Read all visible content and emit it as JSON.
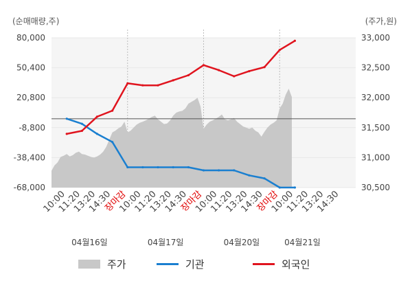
{
  "chart_data": {
    "type": "line",
    "left_axis": {
      "unit_label": "(순매매량,주)",
      "ticks": [
        80000,
        50400,
        20800,
        -8800,
        -38400,
        -68000
      ],
      "tick_labels": [
        "80,000",
        "50,400",
        "20,800",
        "-8,800",
        "-38,400",
        "-68,000"
      ],
      "ylim": [
        -68000,
        80000
      ],
      "zero_line": 0
    },
    "right_axis": {
      "unit_label": "(주가,원)",
      "ticks": [
        33000,
        32500,
        32000,
        31500,
        31000,
        30500
      ],
      "tick_labels": [
        "33,000",
        "32,500",
        "32,000",
        "31,500",
        "31,000",
        "30,500"
      ],
      "ylim": [
        30500,
        33000
      ]
    },
    "x_slots": 20,
    "x_tick_labels": [
      "10:00",
      "11:20",
      "13:20",
      "14:30",
      "장마감",
      "10:00",
      "11:20",
      "13:20",
      "14:30",
      "장마감",
      "10:00",
      "11:20",
      "13:20",
      "14:30",
      "장마감",
      "10:00",
      "11:20",
      "13:20",
      "14:30"
    ],
    "close_label": "장마감",
    "day_separators": [
      5,
      10,
      15
    ],
    "dates": [
      {
        "label": "04월16일",
        "center": 2.5
      },
      {
        "label": "04월17일",
        "center": 7.5
      },
      {
        "label": "04월20일",
        "center": 12.5
      },
      {
        "label": "04월21일",
        "center": 16.5
      }
    ],
    "series": [
      {
        "name": "기관",
        "color": "#1a7fd0",
        "axis": "left",
        "points": [
          [
            1,
            0
          ],
          [
            2,
            -5000
          ],
          [
            3,
            -15000
          ],
          [
            4,
            -23000
          ],
          [
            5,
            -48000
          ],
          [
            6,
            -48000
          ],
          [
            7,
            -48000
          ],
          [
            8,
            -48000
          ],
          [
            9,
            -48000
          ],
          [
            10,
            -51000
          ],
          [
            11,
            -51000
          ],
          [
            12,
            -51000
          ],
          [
            13,
            -56000
          ],
          [
            14,
            -59000
          ],
          [
            15,
            -68000
          ],
          [
            16,
            -68000
          ]
        ]
      },
      {
        "name": "외국인",
        "color": "#e0141e",
        "axis": "left",
        "points": [
          [
            1,
            -15000
          ],
          [
            2,
            -12000
          ],
          [
            3,
            2000
          ],
          [
            4,
            8000
          ],
          [
            5,
            35000
          ],
          [
            6,
            33000
          ],
          [
            7,
            33000
          ],
          [
            8,
            38000
          ],
          [
            9,
            43000
          ],
          [
            10,
            53000
          ],
          [
            11,
            48000
          ],
          [
            12,
            42000
          ],
          [
            13,
            47000
          ],
          [
            14,
            51000
          ],
          [
            15,
            68000
          ],
          [
            16,
            77000
          ]
        ]
      },
      {
        "name": "주가",
        "color": "#c8c8c8",
        "axis": "right",
        "type": "area",
        "points": [
          [
            0,
            30780
          ],
          [
            0.2,
            30870
          ],
          [
            0.4,
            30920
          ],
          [
            0.6,
            31010
          ],
          [
            0.8,
            31030
          ],
          [
            1.0,
            31060
          ],
          [
            1.2,
            31020
          ],
          [
            1.4,
            31040
          ],
          [
            1.6,
            31080
          ],
          [
            1.8,
            31100
          ],
          [
            2.0,
            31060
          ],
          [
            2.2,
            31050
          ],
          [
            2.4,
            31030
          ],
          [
            2.6,
            31010
          ],
          [
            2.8,
            31000
          ],
          [
            3.0,
            31020
          ],
          [
            3.2,
            31050
          ],
          [
            3.4,
            31100
          ],
          [
            3.6,
            31180
          ],
          [
            3.8,
            31300
          ],
          [
            4.0,
            31420
          ],
          [
            4.2,
            31450
          ],
          [
            4.4,
            31490
          ],
          [
            4.6,
            31520
          ],
          [
            4.8,
            31600
          ],
          [
            5.0,
            31420
          ],
          [
            5.2,
            31450
          ],
          [
            5.4,
            31500
          ],
          [
            5.6,
            31550
          ],
          [
            5.8,
            31580
          ],
          [
            6.0,
            31600
          ],
          [
            6.2,
            31620
          ],
          [
            6.4,
            31650
          ],
          [
            6.6,
            31680
          ],
          [
            6.8,
            31700
          ],
          [
            7.0,
            31640
          ],
          [
            7.2,
            31600
          ],
          [
            7.4,
            31560
          ],
          [
            7.6,
            31570
          ],
          [
            7.8,
            31620
          ],
          [
            8.0,
            31700
          ],
          [
            8.2,
            31750
          ],
          [
            8.4,
            31770
          ],
          [
            8.6,
            31780
          ],
          [
            8.8,
            31820
          ],
          [
            9.0,
            31900
          ],
          [
            9.2,
            31930
          ],
          [
            9.4,
            31960
          ],
          [
            9.6,
            32000
          ],
          [
            9.8,
            31850
          ],
          [
            10.0,
            31480
          ],
          [
            10.2,
            31550
          ],
          [
            10.4,
            31600
          ],
          [
            10.6,
            31620
          ],
          [
            10.8,
            31650
          ],
          [
            11.0,
            31680
          ],
          [
            11.2,
            31720
          ],
          [
            11.4,
            31640
          ],
          [
            11.6,
            31620
          ],
          [
            11.8,
            31640
          ],
          [
            12.0,
            31660
          ],
          [
            12.2,
            31600
          ],
          [
            12.4,
            31560
          ],
          [
            12.6,
            31520
          ],
          [
            12.8,
            31500
          ],
          [
            13.0,
            31480
          ],
          [
            13.2,
            31500
          ],
          [
            13.4,
            31450
          ],
          [
            13.6,
            31420
          ],
          [
            13.8,
            31350
          ],
          [
            14.0,
            31430
          ],
          [
            14.2,
            31500
          ],
          [
            14.4,
            31550
          ],
          [
            14.6,
            31580
          ],
          [
            14.8,
            31620
          ],
          [
            15.0,
            31820
          ],
          [
            15.2,
            31900
          ],
          [
            15.4,
            32050
          ],
          [
            15.6,
            32150
          ],
          [
            15.8,
            32010
          ]
        ]
      }
    ],
    "zero_line_color": "#555555",
    "grid_color": "#e8e8e8",
    "plot_bg": "#f5f5f5"
  },
  "legend": [
    {
      "label": "주가",
      "kind": "swatch",
      "color": "#c8c8c8"
    },
    {
      "label": "기관",
      "kind": "line",
      "color": "#1a7fd0"
    },
    {
      "label": "외국인",
      "kind": "line",
      "color": "#e0141e"
    }
  ]
}
